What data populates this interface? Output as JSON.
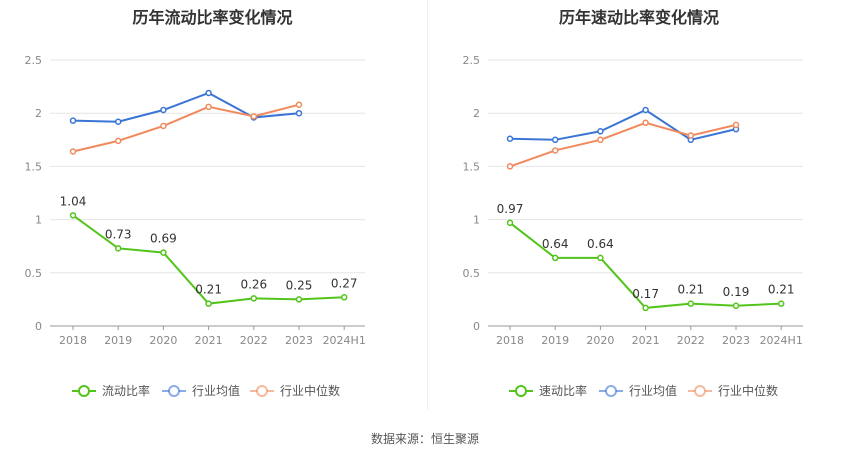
{
  "chart_data": [
    {
      "type": "line",
      "title": "历年流动比率变化情况",
      "categories": [
        "2018",
        "2019",
        "2020",
        "2021",
        "2022",
        "2023",
        "2024H1"
      ],
      "ylim": [
        0,
        2.5
      ],
      "yticks": [
        "0",
        "0.5",
        "1",
        "1.5",
        "2",
        "2.5"
      ],
      "grid": true,
      "legend_position": "bottom",
      "series": [
        {
          "name": "流动比率",
          "color": "#52c41a",
          "values": [
            1.04,
            0.73,
            0.69,
            0.21,
            0.26,
            0.25,
            0.27
          ],
          "labels": [
            "1.04",
            "0.73",
            "0.69",
            "0.21",
            "0.26",
            "0.25",
            "0.27"
          ]
        },
        {
          "name": "行业均值",
          "color": "#3a75d6",
          "values": [
            1.93,
            1.92,
            2.03,
            2.19,
            1.96,
            2.0,
            null
          ]
        },
        {
          "name": "行业中位数",
          "color": "#f08a5d",
          "values": [
            1.64,
            1.74,
            1.88,
            2.06,
            1.97,
            2.08,
            null
          ]
        }
      ]
    },
    {
      "type": "line",
      "title": "历年速动比率变化情况",
      "categories": [
        "2018",
        "2019",
        "2020",
        "2021",
        "2022",
        "2023",
        "2024H1"
      ],
      "ylim": [
        0,
        2.5
      ],
      "yticks": [
        "0",
        "0.5",
        "1",
        "1.5",
        "2",
        "2.5"
      ],
      "grid": true,
      "legend_position": "bottom",
      "series": [
        {
          "name": "速动比率",
          "color": "#52c41a",
          "values": [
            0.97,
            0.64,
            0.64,
            0.17,
            0.21,
            0.19,
            0.21
          ],
          "labels": [
            "0.97",
            "0.64",
            "0.64",
            "0.17",
            "0.21",
            "0.19",
            "0.21"
          ]
        },
        {
          "name": "行业均值",
          "color": "#3a75d6",
          "values": [
            1.76,
            1.75,
            1.83,
            2.03,
            1.75,
            1.85,
            null
          ]
        },
        {
          "name": "行业中位数",
          "color": "#f08a5d",
          "values": [
            1.5,
            1.65,
            1.75,
            1.91,
            1.79,
            1.89,
            null
          ]
        }
      ]
    }
  ],
  "footer": {
    "source": "数据来源：恒生聚源"
  }
}
